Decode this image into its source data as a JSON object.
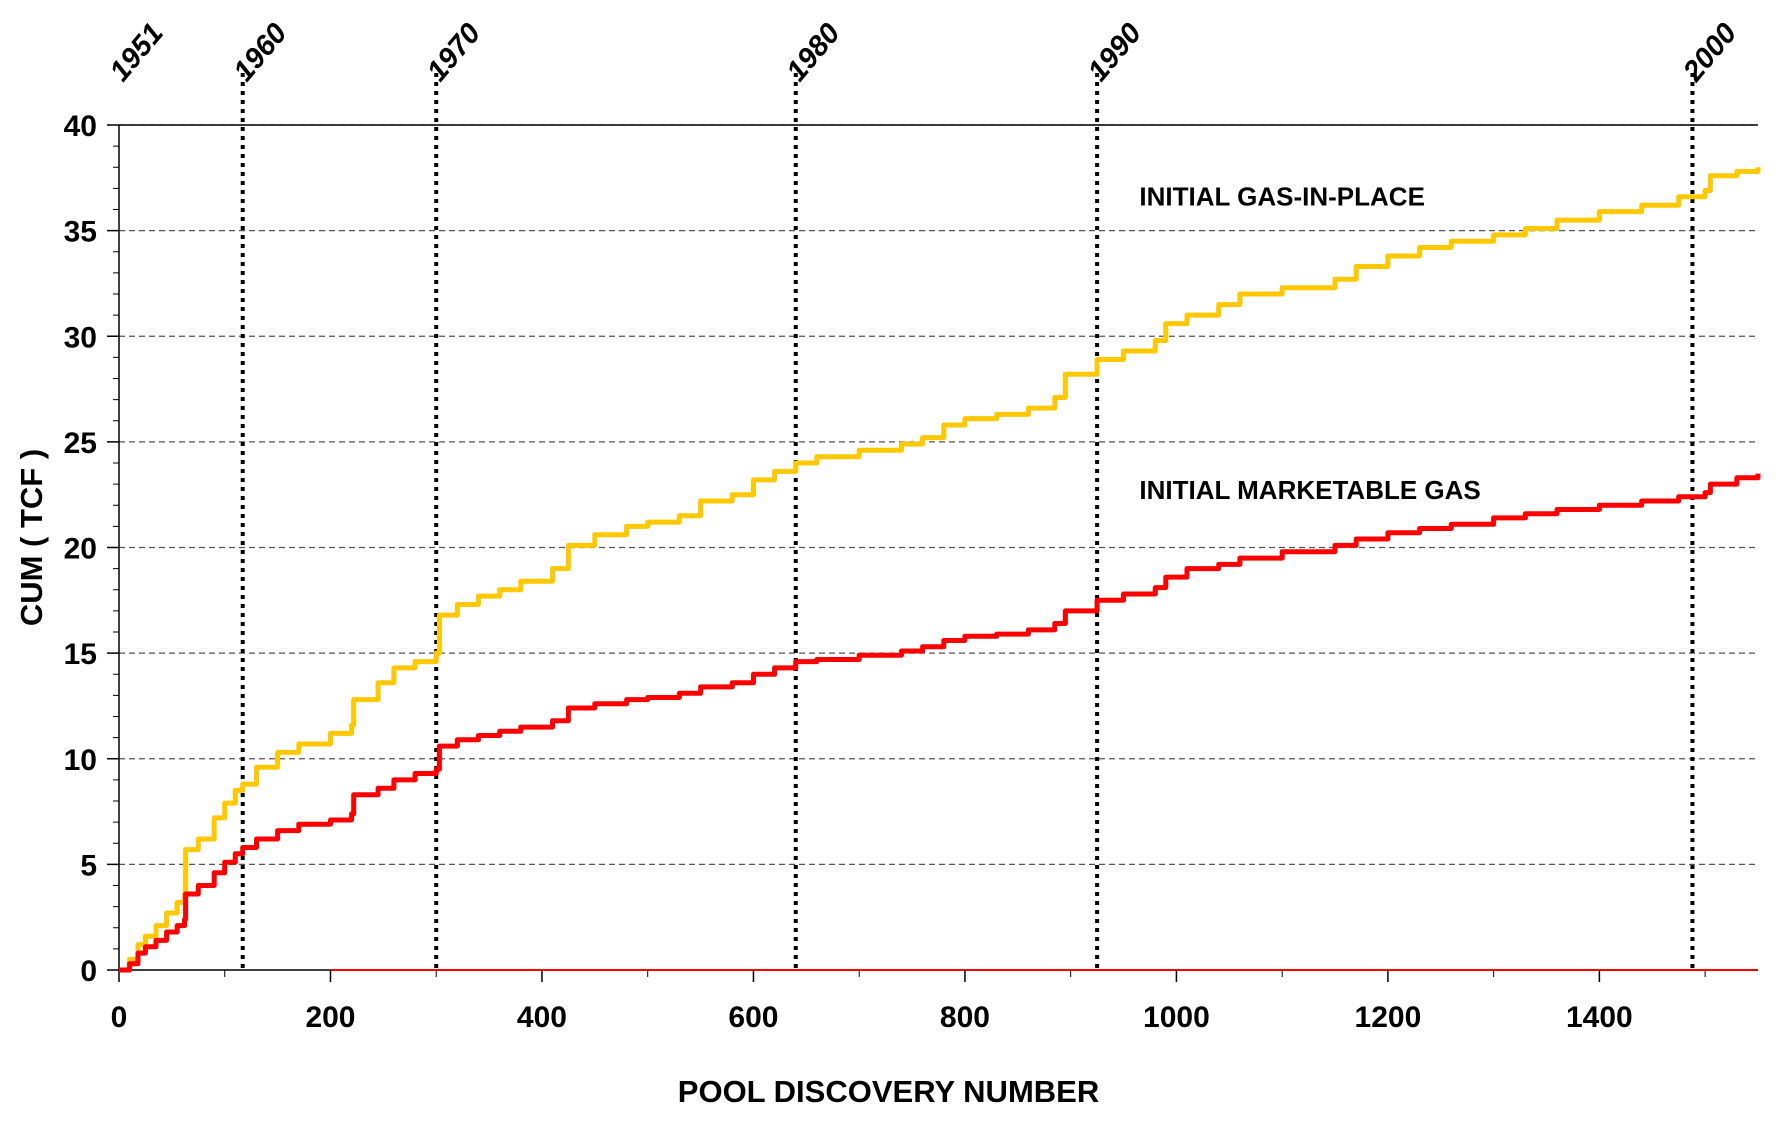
{
  "chart_data": {
    "type": "line",
    "title": "",
    "xlabel": "POOL DISCOVERY NUMBER",
    "ylabel": "CUM ( TCF )",
    "xlim": [
      0,
      1550
    ],
    "ylim": [
      0,
      40
    ],
    "x_ticks": [
      0,
      200,
      400,
      600,
      800,
      1000,
      1200,
      1400
    ],
    "y_ticks": [
      0,
      5,
      10,
      15,
      20,
      25,
      30,
      35,
      40
    ],
    "grid": "horizontal dashed",
    "year_markers": [
      {
        "label": "1951",
        "x": 0,
        "line": false
      },
      {
        "label": "1960",
        "x": 117,
        "line": true
      },
      {
        "label": "1970",
        "x": 300,
        "line": true
      },
      {
        "label": "1980",
        "x": 640,
        "line": true
      },
      {
        "label": "1990",
        "x": 925,
        "line": true
      },
      {
        "label": "2000",
        "x": 1488,
        "line": true
      }
    ],
    "series": [
      {
        "name": "INITIAL GAS-IN-PLACE",
        "color": "#FFC800",
        "x": [
          0,
          10,
          18,
          25,
          35,
          45,
          55,
          62,
          63,
          75,
          90,
          100,
          110,
          117,
          130,
          150,
          170,
          200,
          220,
          222,
          245,
          260,
          280,
          300,
          303,
          320,
          340,
          360,
          380,
          410,
          425,
          450,
          480,
          500,
          530,
          550,
          580,
          600,
          620,
          640,
          660,
          700,
          740,
          760,
          780,
          800,
          830,
          860,
          885,
          895,
          925,
          950,
          980,
          990,
          1010,
          1040,
          1060,
          1100,
          1150,
          1170,
          1200,
          1230,
          1260,
          1300,
          1330,
          1360,
          1400,
          1440,
          1475,
          1500,
          1505,
          1530,
          1550
        ],
        "y": [
          0,
          0.5,
          1.2,
          1.6,
          2.1,
          2.7,
          3.2,
          3.6,
          5.7,
          6.2,
          7.2,
          7.9,
          8.5,
          8.8,
          9.6,
          10.3,
          10.7,
          11.2,
          11.6,
          12.8,
          13.6,
          14.3,
          14.6,
          15.0,
          16.8,
          17.3,
          17.7,
          18.0,
          18.4,
          19.0,
          20.1,
          20.6,
          21.0,
          21.2,
          21.5,
          22.2,
          22.5,
          23.2,
          23.6,
          24.0,
          24.3,
          24.6,
          24.9,
          25.2,
          25.8,
          26.1,
          26.3,
          26.6,
          27.1,
          28.2,
          28.9,
          29.3,
          29.8,
          30.6,
          31.0,
          31.5,
          32.0,
          32.3,
          32.7,
          33.3,
          33.8,
          34.2,
          34.5,
          34.8,
          35.1,
          35.5,
          35.9,
          36.2,
          36.6,
          36.9,
          37.6,
          37.8,
          38.0
        ]
      },
      {
        "name": "INITIAL MARKETABLE GAS",
        "color": "#FF0000",
        "x": [
          0,
          10,
          18,
          25,
          35,
          45,
          55,
          62,
          63,
          75,
          90,
          100,
          110,
          117,
          130,
          150,
          170,
          200,
          220,
          222,
          245,
          260,
          280,
          300,
          303,
          320,
          340,
          360,
          380,
          410,
          425,
          450,
          480,
          500,
          530,
          550,
          580,
          600,
          620,
          640,
          660,
          700,
          740,
          760,
          780,
          800,
          830,
          860,
          885,
          895,
          925,
          950,
          980,
          990,
          1010,
          1040,
          1060,
          1100,
          1150,
          1170,
          1200,
          1230,
          1260,
          1300,
          1330,
          1360,
          1400,
          1440,
          1475,
          1500,
          1505,
          1530,
          1550
        ],
        "y": [
          0,
          0.3,
          0.8,
          1.1,
          1.4,
          1.8,
          2.1,
          2.4,
          3.6,
          4.0,
          4.6,
          5.1,
          5.5,
          5.8,
          6.2,
          6.6,
          6.9,
          7.1,
          7.4,
          8.3,
          8.6,
          9.0,
          9.3,
          9.5,
          10.6,
          10.9,
          11.1,
          11.3,
          11.5,
          11.8,
          12.4,
          12.6,
          12.8,
          12.9,
          13.1,
          13.4,
          13.6,
          14.0,
          14.3,
          14.6,
          14.7,
          14.9,
          15.1,
          15.3,
          15.6,
          15.8,
          15.9,
          16.1,
          16.4,
          17.0,
          17.5,
          17.8,
          18.1,
          18.6,
          19.0,
          19.2,
          19.5,
          19.8,
          20.1,
          20.4,
          20.7,
          20.9,
          21.1,
          21.4,
          21.6,
          21.8,
          22.0,
          22.2,
          22.4,
          22.6,
          23.0,
          23.3,
          23.5
        ]
      }
    ],
    "annotations": [
      {
        "text": "INITIAL GAS-IN-PLACE",
        "x": 965,
        "y": 36.2
      },
      {
        "text": "INITIAL MARKETABLE GAS",
        "x": 965,
        "y": 22.3
      }
    ],
    "baseline_red_from_x": 200
  }
}
